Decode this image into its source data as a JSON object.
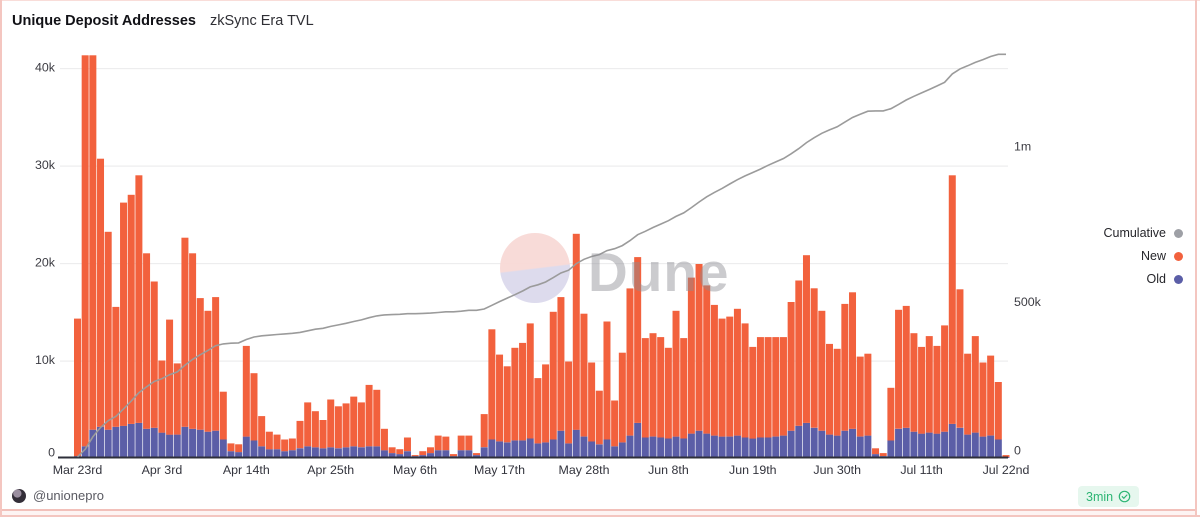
{
  "header": {
    "title": "Unique Deposit Addresses",
    "subtitle": "zkSync Era TVL"
  },
  "watermark": {
    "text": "Dune",
    "logo": "dune-circle-logo"
  },
  "colors": {
    "new": "#F2613D",
    "old": "#5B5EA7",
    "cumulative_line": "#9B9B9B",
    "legend_cumulative_dot": "#9EA0A6",
    "grid": "#EDEDEE",
    "axis_line": "#2E2F3A",
    "axis_text": "#3C3C43",
    "badge_green": "#2DB574"
  },
  "legend": {
    "items": [
      {
        "label": "Cumulative",
        "color": "#9EA0A6"
      },
      {
        "label": "New",
        "color": "#F2613D"
      },
      {
        "label": "Old",
        "color": "#5B5EA7"
      }
    ]
  },
  "footer": {
    "author_handle": "@unionepro",
    "badge_text": "3min",
    "badge_icon": "check-circle-icon"
  },
  "axes": {
    "y_left": {
      "tick_labels": [
        "0",
        "10k",
        "20k",
        "30k",
        "40k"
      ],
      "tick_values_k": [
        0,
        10,
        20,
        30,
        40
      ],
      "grid_values_k": [
        10,
        20,
        30,
        40
      ]
    },
    "y_right": {
      "tick_labels": [
        "0",
        "500k",
        "1m"
      ],
      "tick_values_k": [
        0,
        500,
        1000
      ]
    },
    "x": {
      "tick_labels": [
        "Mar 23rd",
        "Apr 3rd",
        "Apr 14th",
        "Apr 25th",
        "May 6th",
        "May 17th",
        "May 28th",
        "Jun 8th",
        "Jun 19th",
        "Jun 30th",
        "Jul 11th",
        "Jul 22nd"
      ],
      "tick_day_index": [
        0,
        11,
        22,
        33,
        44,
        55,
        66,
        77,
        88,
        99,
        110,
        121
      ]
    }
  },
  "chart_data": {
    "type": "stacked_bar_with_line",
    "x_start": "Mar 23rd",
    "x_end": "Jul 22nd",
    "n_days": 122,
    "units": "thousands of addresses",
    "ylim_left_k": [
      0,
      42
    ],
    "ylim_right_k": [
      0,
      1320
    ],
    "grid": "horizontal-only",
    "legend_position": "right",
    "series": [
      {
        "name": "New",
        "type": "bar",
        "axis": "left",
        "values_k": [
          14.1,
          40.1,
          38.4,
          27.5,
          20.3,
          12.3,
          22.9,
          23.5,
          25.4,
          18.0,
          15.0,
          7.4,
          11.8,
          7.3,
          19.4,
          18.0,
          13.5,
          12.4,
          13.7,
          4.9,
          0.8,
          0.8,
          9.3,
          6.9,
          3.1,
          1.8,
          1.5,
          1.2,
          1.2,
          2.8,
          4.5,
          3.7,
          2.9,
          4.9,
          4.3,
          4.5,
          5.1,
          4.6,
          6.3,
          5.8,
          2.2,
          0.6,
          0.5,
          1.4,
          0.1,
          0.4,
          0.6,
          1.5,
          1.4,
          0.2,
          1.5,
          1.5,
          0.2,
          3.4,
          11.3,
          8.9,
          7.8,
          9.5,
          10.0,
          11.8,
          6.7,
          8.0,
          13.1,
          13.7,
          8.4,
          20.1,
          12.6,
          8.1,
          5.5,
          12.1,
          4.7,
          9.2,
          15.1,
          17.0,
          10.2,
          10.6,
          10.3,
          9.3,
          12.9,
          10.3,
          16.0,
          17.1,
          15.2,
          13.4,
          12.1,
          12.3,
          13.0,
          11.7,
          9.4,
          10.3,
          10.3,
          10.2,
          10.1,
          13.2,
          14.9,
          17.2,
          14.3,
          12.3,
          9.3,
          8.9,
          13.0,
          14.0,
          8.2,
          8.4,
          0.6,
          0.3,
          5.4,
          12.2,
          12.5,
          10.1,
          8.9,
          9.9,
          9.0,
          10.9,
          25.5,
          14.2,
          8.3,
          9.9,
          7.6,
          8.2,
          5.9,
          0.2
        ]
      },
      {
        "name": "Old",
        "type": "bar",
        "axis": "left",
        "values_k": [
          0.2,
          1.2,
          2.9,
          3.2,
          2.9,
          3.2,
          3.3,
          3.5,
          3.6,
          3.0,
          3.1,
          2.6,
          2.4,
          2.4,
          3.2,
          3.0,
          2.9,
          2.7,
          2.8,
          1.9,
          0.7,
          0.6,
          2.2,
          1.8,
          1.2,
          0.9,
          0.9,
          0.7,
          0.8,
          1.0,
          1.2,
          1.1,
          1.0,
          1.1,
          1.0,
          1.1,
          1.2,
          1.1,
          1.2,
          1.2,
          0.8,
          0.5,
          0.4,
          0.7,
          0.2,
          0.3,
          0.5,
          0.8,
          0.8,
          0.2,
          0.8,
          0.8,
          0.3,
          1.1,
          1.9,
          1.7,
          1.6,
          1.8,
          1.8,
          2.0,
          1.5,
          1.6,
          1.9,
          2.8,
          1.5,
          2.9,
          2.2,
          1.7,
          1.4,
          1.9,
          1.2,
          1.6,
          2.3,
          3.6,
          2.1,
          2.2,
          2.1,
          2.0,
          2.2,
          2.0,
          2.5,
          2.8,
          2.5,
          2.3,
          2.2,
          2.2,
          2.3,
          2.1,
          2.0,
          2.1,
          2.1,
          2.2,
          2.3,
          2.8,
          3.3,
          3.6,
          3.1,
          2.8,
          2.4,
          2.3,
          2.8,
          3.0,
          2.2,
          2.3,
          0.4,
          0.2,
          1.8,
          3.0,
          3.1,
          2.7,
          2.5,
          2.6,
          2.5,
          2.7,
          3.5,
          3.1,
          2.4,
          2.6,
          2.2,
          2.3,
          1.9,
          0.1
        ]
      },
      {
        "name": "Cumulative",
        "type": "line",
        "axis": "right",
        "values_k": [
          4,
          28,
          68,
          98,
          120,
          134,
          158,
          183,
          210,
          229,
          246,
          255,
          268,
          277,
          298,
          317,
          332,
          346,
          361,
          367,
          369,
          370,
          381,
          389,
          393,
          395,
          397,
          399,
          401,
          404,
          409,
          414,
          417,
          423,
          428,
          433,
          439,
          444,
          451,
          457,
          460,
          461,
          462,
          464,
          464,
          465,
          466,
          468,
          470,
          470,
          472,
          475,
          475,
          479,
          491,
          503,
          514,
          525,
          537,
          550,
          557,
          566,
          580,
          595,
          604,
          625,
          639,
          648,
          654,
          667,
          673,
          683,
          699,
          718,
          729,
          741,
          752,
          763,
          777,
          788,
          805,
          823,
          840,
          854,
          867,
          881,
          895,
          907,
          918,
          929,
          941,
          952,
          963,
          978,
          995,
          1014,
          1030,
          1044,
          1055,
          1065,
          1080,
          1095,
          1105,
          1115,
          1116,
          1116,
          1123,
          1137,
          1151,
          1163,
          1174,
          1185,
          1196,
          1208,
          1235,
          1251,
          1261,
          1272,
          1281,
          1291,
          1298,
          1298
        ]
      }
    ]
  }
}
